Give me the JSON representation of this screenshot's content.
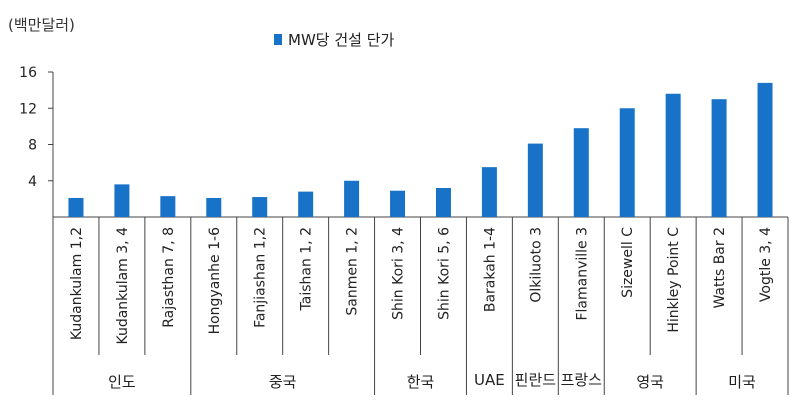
{
  "chart_data": {
    "type": "bar",
    "unit_label": "(백만달러)",
    "legend": [
      "MW당 건설 단가"
    ],
    "ylim": [
      0,
      16
    ],
    "yticks": [
      4,
      8,
      12,
      16
    ],
    "bar_color": "#1873c8",
    "categories": [
      "Kudankulam 1,2",
      "Kudankulam 3, 4",
      "Rajasthan 7, 8",
      "Hongyanhe 1-6",
      "Fanjiashan 1,2",
      "Taishan 1, 2",
      "Sanmen 1, 2",
      "Shin Kori 3, 4",
      "Shin Kori 5, 6",
      "Barakah 1-4",
      "Olkiluoto 3",
      "Flamanville 3",
      "Sizewell C",
      "Hinkley Point C",
      "Watts Bar 2",
      "Vogtle 3, 4"
    ],
    "series": [
      {
        "name": "MW당 건설 단가",
        "values": [
          2.1,
          3.6,
          2.3,
          2.1,
          2.2,
          2.8,
          4.0,
          2.9,
          3.2,
          5.5,
          8.1,
          9.8,
          12.0,
          13.6,
          13.0,
          14.8
        ]
      }
    ],
    "groups": [
      {
        "label": "인도",
        "start": 0,
        "end": 2
      },
      {
        "label": "중국",
        "start": 3,
        "end": 6
      },
      {
        "label": "한국",
        "start": 7,
        "end": 8
      },
      {
        "label": "UAE",
        "start": 9,
        "end": 9
      },
      {
        "label": "핀란드",
        "start": 10,
        "end": 10
      },
      {
        "label": "프랑스",
        "start": 11,
        "end": 11
      },
      {
        "label": "영국",
        "start": 12,
        "end": 13
      },
      {
        "label": "미국",
        "start": 14,
        "end": 15
      }
    ]
  }
}
